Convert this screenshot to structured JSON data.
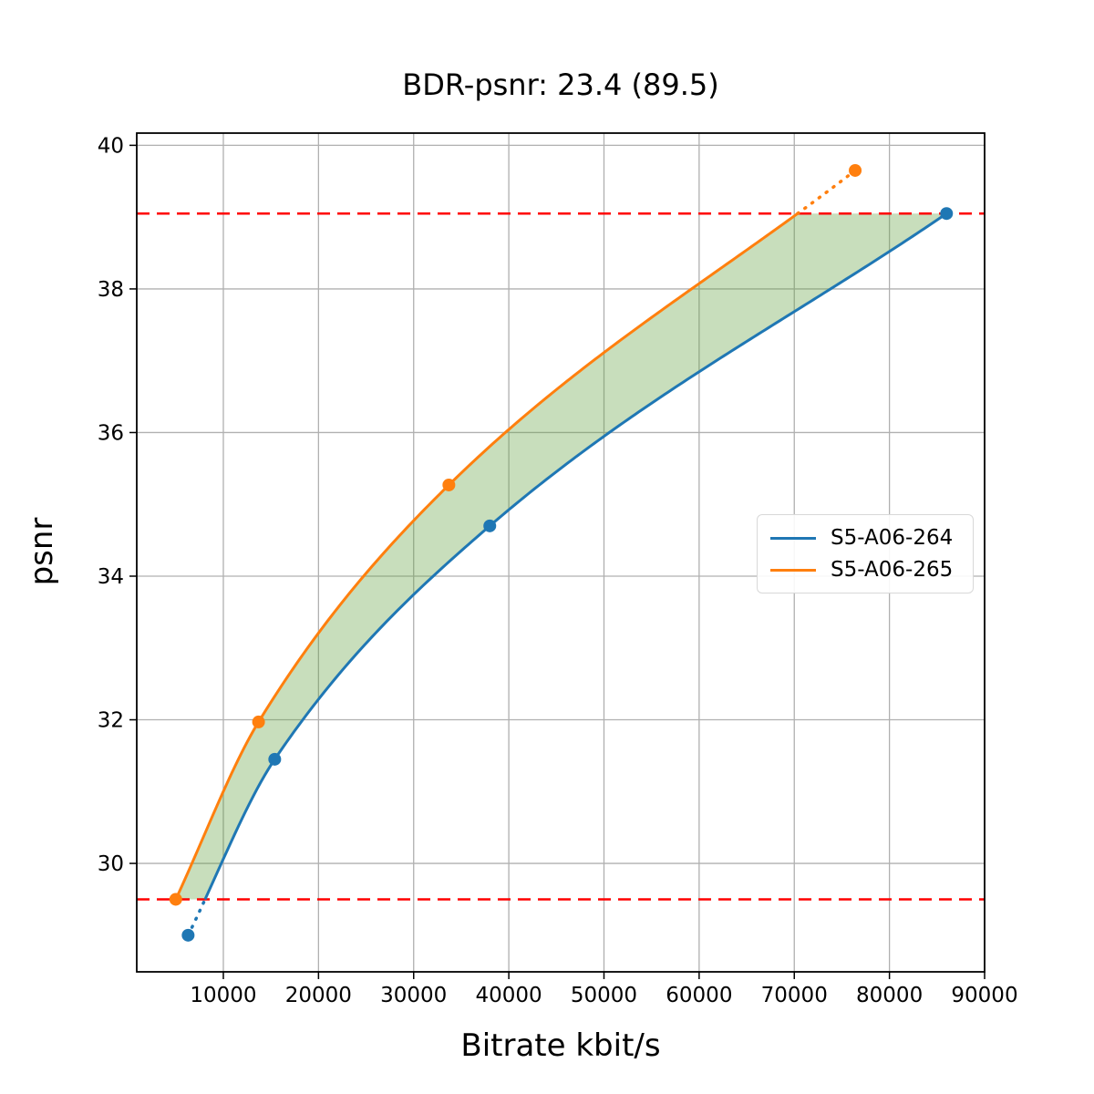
{
  "chart_data": {
    "type": "line",
    "title": "BDR-psnr: 23.4 (89.5)",
    "xlabel": "Bitrate kbit/s",
    "ylabel": "psnr",
    "bdr_value": 23.4,
    "bdr_secondary": 89.5,
    "xlim": [
      900,
      90000
    ],
    "ylim": [
      28.49,
      40.17
    ],
    "xticks": [
      10000,
      20000,
      30000,
      40000,
      50000,
      60000,
      70000,
      80000,
      90000
    ],
    "yticks": [
      30,
      32,
      34,
      36,
      38,
      40
    ],
    "grid": true,
    "grid_color": "#b0b0b0",
    "legend_position": "center right",
    "series": [
      {
        "name": "S5-A06-264",
        "color": "#1f77b4",
        "marker": "circle",
        "points": [
          [
            6300,
            29.0
          ],
          [
            15400,
            31.45
          ],
          [
            38000,
            34.7
          ],
          [
            86000,
            39.05
          ]
        ]
      },
      {
        "name": "S5-A06-265",
        "color": "#ff7f0e",
        "marker": "circle",
        "points": [
          [
            5000,
            29.5
          ],
          [
            13700,
            31.97
          ],
          [
            33700,
            35.27
          ],
          [
            76400,
            39.65
          ]
        ]
      }
    ],
    "overlap_region": {
      "psnr_low": 29.5,
      "psnr_high": 39.05,
      "line_color": "#ff0000",
      "line_style": "dashed",
      "fill_color": "rgba(96,160,64,0.35)"
    }
  }
}
